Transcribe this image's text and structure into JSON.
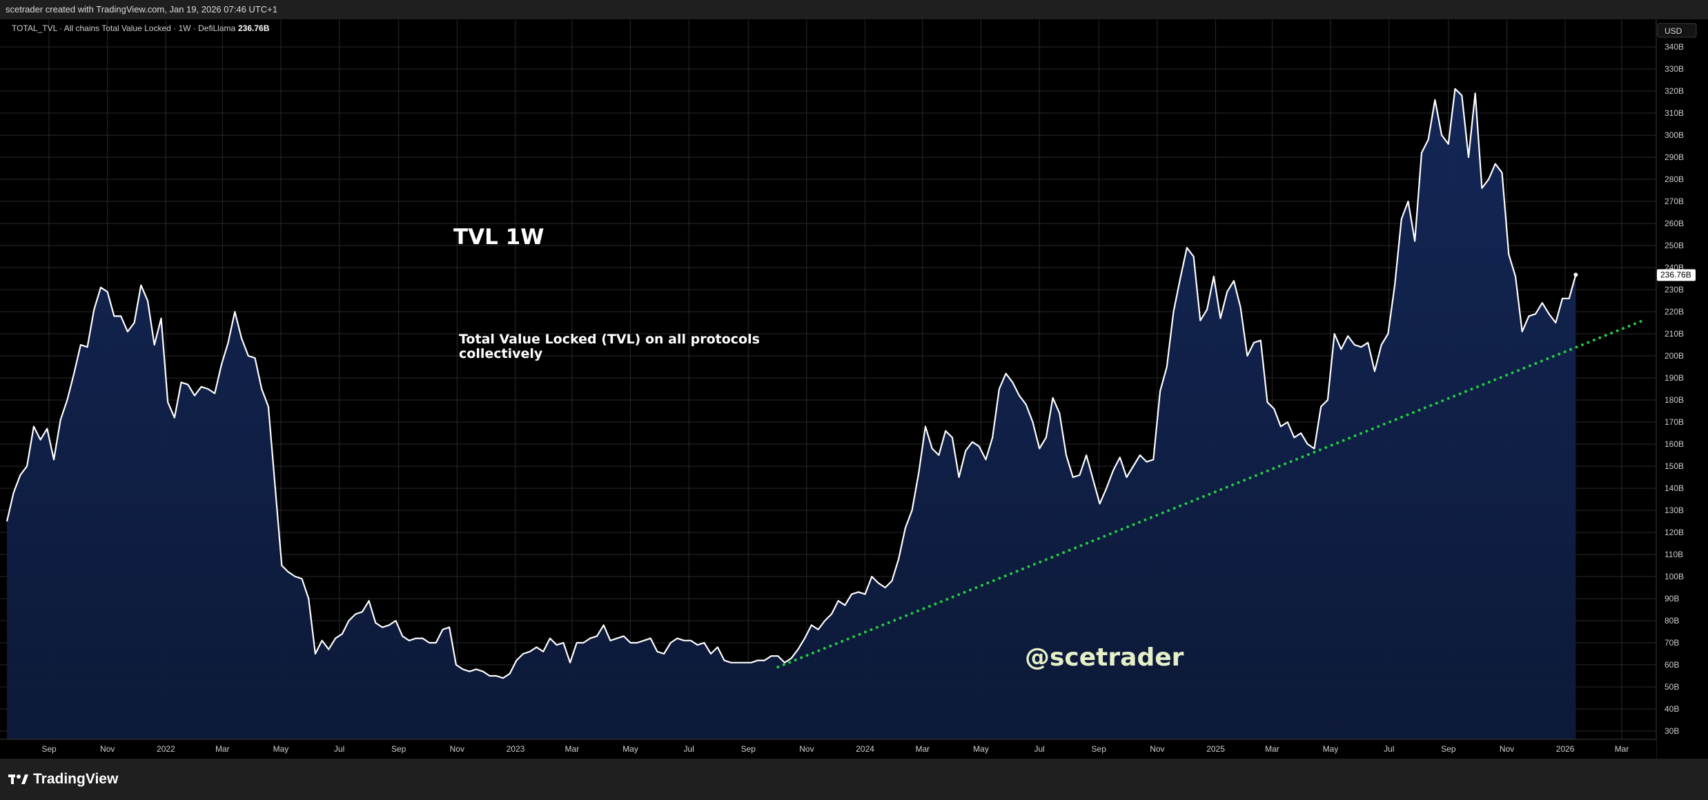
{
  "header": {
    "created_by": "scetrader created with TradingView.com, Jan 19, 2026 07:46 UTC+1"
  },
  "legend": {
    "symbol_info": "TOTAL_TVL · All chains Total Value Locked · 1W · DefiLlama",
    "last_value": "236.76B"
  },
  "currency_button": "USD",
  "price_tag": "236.76B",
  "annotations": {
    "title": "TVL 1W",
    "note_line1": "Total Value Locked (TVL) on all protocols",
    "note_line2": "collectively",
    "watermark": "@scetrader"
  },
  "footer": {
    "brand": "TradingView"
  },
  "colors": {
    "line": "#ffffff",
    "area": "#0d1a3a",
    "trend": "#22cc44",
    "background": "#000000",
    "grid": "#2a2a2a"
  },
  "chart_data": {
    "type": "area",
    "symbol": "TOTAL_TVL",
    "interval": "1W",
    "unit": "B USD",
    "ylim": [
      30,
      345
    ],
    "xlim": [
      "2021-07-19",
      "2026-04-06"
    ],
    "grid": true,
    "y_ticks": [
      30,
      40,
      50,
      60,
      70,
      80,
      90,
      100,
      110,
      120,
      130,
      140,
      150,
      160,
      170,
      180,
      190,
      200,
      210,
      220,
      230,
      240,
      250,
      260,
      270,
      280,
      290,
      300,
      310,
      320,
      330,
      340
    ],
    "y_tick_labels": [
      "30B",
      "40B",
      "50B",
      "60B",
      "70B",
      "80B",
      "90B",
      "100B",
      "110B",
      "120B",
      "130B",
      "140B",
      "150B",
      "160B",
      "170B",
      "180B",
      "190B",
      "200B",
      "210B",
      "220B",
      "230B",
      "240B",
      "250B",
      "260B",
      "270B",
      "280B",
      "290B",
      "300B",
      "310B",
      "320B",
      "330B",
      "340B"
    ],
    "x_ticks": [
      {
        "label": "Sep",
        "date": "2021-09-01"
      },
      {
        "label": "Nov",
        "date": "2021-11-01"
      },
      {
        "label": "2022",
        "date": "2022-01-01"
      },
      {
        "label": "Mar",
        "date": "2022-03-01"
      },
      {
        "label": "May",
        "date": "2022-05-01"
      },
      {
        "label": "Jul",
        "date": "2022-07-01"
      },
      {
        "label": "Sep",
        "date": "2022-09-01"
      },
      {
        "label": "Nov",
        "date": "2022-11-01"
      },
      {
        "label": "2023",
        "date": "2023-01-01"
      },
      {
        "label": "Mar",
        "date": "2023-03-01"
      },
      {
        "label": "May",
        "date": "2023-05-01"
      },
      {
        "label": "Jul",
        "date": "2023-07-01"
      },
      {
        "label": "Sep",
        "date": "2023-09-01"
      },
      {
        "label": "Nov",
        "date": "2023-11-01"
      },
      {
        "label": "2024",
        "date": "2024-01-01"
      },
      {
        "label": "Mar",
        "date": "2024-03-01"
      },
      {
        "label": "May",
        "date": "2024-05-01"
      },
      {
        "label": "Jul",
        "date": "2024-07-01"
      },
      {
        "label": "Sep",
        "date": "2024-09-01"
      },
      {
        "label": "Nov",
        "date": "2024-11-01"
      },
      {
        "label": "2025",
        "date": "2025-01-01"
      },
      {
        "label": "Mar",
        "date": "2025-03-01"
      },
      {
        "label": "May",
        "date": "2025-05-01"
      },
      {
        "label": "Jul",
        "date": "2025-07-01"
      },
      {
        "label": "Sep",
        "date": "2025-09-01"
      },
      {
        "label": "Nov",
        "date": "2025-11-01"
      },
      {
        "label": "2026",
        "date": "2026-01-01"
      },
      {
        "label": "Mar",
        "date": "2026-03-01"
      }
    ],
    "series": [
      {
        "points": [
          [
            "2021-07-19",
            125
          ],
          [
            "2021-07-26",
            138
          ],
          [
            "2021-08-02",
            146
          ],
          [
            "2021-08-09",
            150
          ],
          [
            "2021-08-16",
            168
          ],
          [
            "2021-08-23",
            162
          ],
          [
            "2021-08-30",
            167
          ],
          [
            "2021-09-06",
            153
          ],
          [
            "2021-09-13",
            171
          ],
          [
            "2021-09-20",
            180
          ],
          [
            "2021-09-27",
            192
          ],
          [
            "2021-10-04",
            205
          ],
          [
            "2021-10-11",
            204
          ],
          [
            "2021-10-18",
            221
          ],
          [
            "2021-10-25",
            231
          ],
          [
            "2021-11-01",
            229
          ],
          [
            "2021-11-08",
            218
          ],
          [
            "2021-11-15",
            218
          ],
          [
            "2021-11-22",
            211
          ],
          [
            "2021-11-29",
            215
          ],
          [
            "2021-12-06",
            232
          ],
          [
            "2021-12-13",
            225
          ],
          [
            "2021-12-20",
            205
          ],
          [
            "2021-12-27",
            217
          ],
          [
            "2022-01-03",
            179
          ],
          [
            "2022-01-10",
            172
          ],
          [
            "2022-01-17",
            188
          ],
          [
            "2022-01-24",
            187
          ],
          [
            "2022-01-31",
            182
          ],
          [
            "2022-02-07",
            186
          ],
          [
            "2022-02-14",
            185
          ],
          [
            "2022-02-21",
            183
          ],
          [
            "2022-02-28",
            196
          ],
          [
            "2022-03-07",
            206
          ],
          [
            "2022-03-14",
            220
          ],
          [
            "2022-03-21",
            208
          ],
          [
            "2022-03-28",
            200
          ],
          [
            "2022-04-04",
            199
          ],
          [
            "2022-04-11",
            185
          ],
          [
            "2022-04-18",
            177
          ],
          [
            "2022-05-02",
            105
          ],
          [
            "2022-05-09",
            102
          ],
          [
            "2022-05-16",
            100
          ],
          [
            "2022-05-23",
            99
          ],
          [
            "2022-05-30",
            90
          ],
          [
            "2022-06-06",
            65
          ],
          [
            "2022-06-13",
            71
          ],
          [
            "2022-06-20",
            67
          ],
          [
            "2022-06-27",
            72
          ],
          [
            "2022-07-04",
            74
          ],
          [
            "2022-07-11",
            80
          ],
          [
            "2022-07-18",
            83
          ],
          [
            "2022-07-25",
            84
          ],
          [
            "2022-08-01",
            89
          ],
          [
            "2022-08-08",
            79
          ],
          [
            "2022-08-15",
            77
          ],
          [
            "2022-08-22",
            78
          ],
          [
            "2022-08-29",
            80
          ],
          [
            "2022-09-05",
            73
          ],
          [
            "2022-09-12",
            71
          ],
          [
            "2022-09-19",
            72
          ],
          [
            "2022-09-26",
            72
          ],
          [
            "2022-10-03",
            70
          ],
          [
            "2022-10-10",
            70
          ],
          [
            "2022-10-17",
            76
          ],
          [
            "2022-10-24",
            77
          ],
          [
            "2022-10-31",
            60
          ],
          [
            "2022-11-07",
            58
          ],
          [
            "2022-11-14",
            57
          ],
          [
            "2022-11-21",
            58
          ],
          [
            "2022-11-28",
            57
          ],
          [
            "2022-12-05",
            55
          ],
          [
            "2022-12-12",
            55
          ],
          [
            "2022-12-19",
            54
          ],
          [
            "2022-12-26",
            56
          ],
          [
            "2023-01-02",
            62
          ],
          [
            "2023-01-09",
            65
          ],
          [
            "2023-01-16",
            66
          ],
          [
            "2023-01-23",
            68
          ],
          [
            "2023-01-30",
            66
          ],
          [
            "2023-02-06",
            72
          ],
          [
            "2023-02-13",
            69
          ],
          [
            "2023-02-20",
            70
          ],
          [
            "2023-02-27",
            61
          ],
          [
            "2023-03-06",
            70
          ],
          [
            "2023-03-13",
            70
          ],
          [
            "2023-03-20",
            72
          ],
          [
            "2023-03-27",
            73
          ],
          [
            "2023-04-03",
            78
          ],
          [
            "2023-04-10",
            71
          ],
          [
            "2023-04-17",
            72
          ],
          [
            "2023-04-24",
            73
          ],
          [
            "2023-05-01",
            70
          ],
          [
            "2023-05-08",
            70
          ],
          [
            "2023-05-15",
            71
          ],
          [
            "2023-05-22",
            72
          ],
          [
            "2023-05-29",
            66
          ],
          [
            "2023-06-05",
            65
          ],
          [
            "2023-06-12",
            70
          ],
          [
            "2023-06-19",
            72
          ],
          [
            "2023-06-26",
            71
          ],
          [
            "2023-07-03",
            71
          ],
          [
            "2023-07-10",
            69
          ],
          [
            "2023-07-17",
            70
          ],
          [
            "2023-07-24",
            65
          ],
          [
            "2023-07-31",
            68
          ],
          [
            "2023-08-07",
            62
          ],
          [
            "2023-08-14",
            61
          ],
          [
            "2023-08-21",
            61
          ],
          [
            "2023-08-28",
            61
          ],
          [
            "2023-09-04",
            61
          ],
          [
            "2023-09-11",
            62
          ],
          [
            "2023-09-18",
            62
          ],
          [
            "2023-09-25",
            64
          ],
          [
            "2023-10-02",
            64
          ],
          [
            "2023-10-09",
            61
          ],
          [
            "2023-10-16",
            63
          ],
          [
            "2023-10-23",
            67
          ],
          [
            "2023-10-30",
            72
          ],
          [
            "2023-11-06",
            78
          ],
          [
            "2023-11-13",
            76
          ],
          [
            "2023-11-20",
            80
          ],
          [
            "2023-11-27",
            83
          ],
          [
            "2023-12-04",
            89
          ],
          [
            "2023-12-11",
            87
          ],
          [
            "2023-12-18",
            92
          ],
          [
            "2023-12-25",
            93
          ],
          [
            "2024-01-01",
            92
          ],
          [
            "2024-01-08",
            100
          ],
          [
            "2024-01-15",
            97
          ],
          [
            "2024-01-22",
            95
          ],
          [
            "2024-01-29",
            98
          ],
          [
            "2024-02-05",
            108
          ],
          [
            "2024-02-12",
            122
          ],
          [
            "2024-02-19",
            130
          ],
          [
            "2024-02-26",
            147
          ],
          [
            "2024-03-04",
            168
          ],
          [
            "2024-03-11",
            158
          ],
          [
            "2024-03-18",
            155
          ],
          [
            "2024-03-25",
            166
          ],
          [
            "2024-04-01",
            163
          ],
          [
            "2024-04-08",
            145
          ],
          [
            "2024-04-15",
            157
          ],
          [
            "2024-04-22",
            161
          ],
          [
            "2024-04-29",
            159
          ],
          [
            "2024-05-06",
            153
          ],
          [
            "2024-05-13",
            163
          ],
          [
            "2024-05-20",
            185
          ],
          [
            "2024-05-27",
            192
          ],
          [
            "2024-06-03",
            188
          ],
          [
            "2024-06-10",
            182
          ],
          [
            "2024-06-17",
            178
          ],
          [
            "2024-06-24",
            170
          ],
          [
            "2024-07-01",
            158
          ],
          [
            "2024-07-08",
            163
          ],
          [
            "2024-07-15",
            181
          ],
          [
            "2024-07-22",
            174
          ],
          [
            "2024-07-29",
            155
          ],
          [
            "2024-08-05",
            145
          ],
          [
            "2024-08-12",
            146
          ],
          [
            "2024-08-19",
            155
          ],
          [
            "2024-08-26",
            144
          ],
          [
            "2024-09-02",
            133
          ],
          [
            "2024-09-09",
            140
          ],
          [
            "2024-09-16",
            148
          ],
          [
            "2024-09-23",
            154
          ],
          [
            "2024-09-30",
            145
          ],
          [
            "2024-10-07",
            150
          ],
          [
            "2024-10-14",
            155
          ],
          [
            "2024-10-21",
            152
          ],
          [
            "2024-10-28",
            153
          ],
          [
            "2024-11-04",
            184
          ],
          [
            "2024-11-11",
            195
          ],
          [
            "2024-11-18",
            220
          ],
          [
            "2024-11-25",
            235
          ],
          [
            "2024-12-02",
            249
          ],
          [
            "2024-12-09",
            245
          ],
          [
            "2024-12-16",
            216
          ],
          [
            "2024-12-23",
            221
          ],
          [
            "2024-12-30",
            236
          ],
          [
            "2025-01-06",
            217
          ],
          [
            "2025-01-13",
            229
          ],
          [
            "2025-01-20",
            234
          ],
          [
            "2025-01-27",
            222
          ],
          [
            "2025-02-03",
            200
          ],
          [
            "2025-02-10",
            206
          ],
          [
            "2025-02-17",
            207
          ],
          [
            "2025-02-24",
            179
          ],
          [
            "2025-03-03",
            176
          ],
          [
            "2025-03-10",
            168
          ],
          [
            "2025-03-17",
            170
          ],
          [
            "2025-03-24",
            163
          ],
          [
            "2025-03-31",
            165
          ],
          [
            "2025-04-07",
            160
          ],
          [
            "2025-04-14",
            158
          ],
          [
            "2025-04-21",
            177
          ],
          [
            "2025-04-28",
            180
          ],
          [
            "2025-05-05",
            210
          ],
          [
            "2025-05-12",
            203
          ],
          [
            "2025-05-19",
            209
          ],
          [
            "2025-05-26",
            205
          ],
          [
            "2025-06-02",
            204
          ],
          [
            "2025-06-09",
            206
          ],
          [
            "2025-06-16",
            193
          ],
          [
            "2025-06-23",
            205
          ],
          [
            "2025-06-30",
            210
          ],
          [
            "2025-07-07",
            232
          ],
          [
            "2025-07-14",
            262
          ],
          [
            "2025-07-21",
            270
          ],
          [
            "2025-07-28",
            252
          ],
          [
            "2025-08-04",
            292
          ],
          [
            "2025-08-11",
            298
          ],
          [
            "2025-08-18",
            316
          ],
          [
            "2025-08-25",
            300
          ],
          [
            "2025-09-01",
            296
          ],
          [
            "2025-09-08",
            321
          ],
          [
            "2025-09-15",
            318
          ],
          [
            "2025-09-22",
            290
          ],
          [
            "2025-09-29",
            319
          ],
          [
            "2025-10-06",
            276
          ],
          [
            "2025-10-13",
            280
          ],
          [
            "2025-10-20",
            287
          ],
          [
            "2025-10-27",
            283
          ],
          [
            "2025-11-03",
            246
          ],
          [
            "2025-11-10",
            236
          ],
          [
            "2025-11-17",
            211
          ],
          [
            "2025-11-24",
            218
          ],
          [
            "2025-12-01",
            219
          ],
          [
            "2025-12-08",
            224
          ],
          [
            "2025-12-15",
            219
          ],
          [
            "2025-12-22",
            215
          ],
          [
            "2025-12-29",
            226
          ],
          [
            "2026-01-05",
            226
          ],
          [
            "2026-01-12",
            236.76
          ]
        ]
      }
    ],
    "last_value": 236.76,
    "trendline": {
      "style": "dotted",
      "color": "#22cc44",
      "from": [
        "2023-10-02",
        59
      ],
      "to": [
        "2026-03-23",
        216
      ]
    }
  }
}
